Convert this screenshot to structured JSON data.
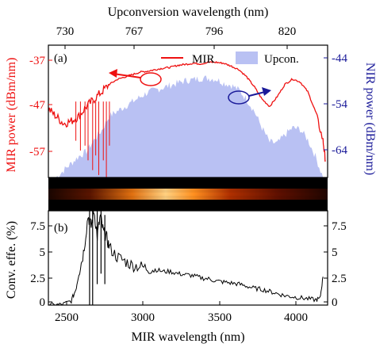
{
  "colors": {
    "mir": "#ee1111",
    "upcon_fill": "#b9c1f3",
    "nir": "#1a1a99",
    "black": "#000000"
  },
  "chart_data": [
    {
      "panel": "(a)",
      "type": "line",
      "title": "",
      "top_axis": {
        "label": "Upconversion wavelength (nm)",
        "ticks": [
          {
            "label": "730",
            "mir_nm": 2590
          },
          {
            "label": "767",
            "mir_nm": 2990
          },
          {
            "label": "796",
            "mir_nm": 3390
          },
          {
            "label": "820",
            "mir_nm": 3800
          }
        ]
      },
      "xlabel": "MIR wavelength (nm)",
      "xlim": [
        2400,
        4230
      ],
      "left_axis": {
        "label": "MIR power (dBm/nm)",
        "ylim": [
          -61.5,
          -34.5
        ],
        "ticks": [
          -37,
          -47,
          -57
        ],
        "color": "#ee1111"
      },
      "right_axis": {
        "label": "NIR power (dBm/nm)",
        "ylim": [
          -69,
          -41
        ],
        "ticks": [
          -44,
          -54,
          -64
        ],
        "color": "#1a1a99"
      },
      "legend": {
        "placement": "top-right",
        "entries": [
          {
            "label": "MIR",
            "style": "line",
            "color": "#ee1111"
          },
          {
            "label": "Upcon.",
            "style": "area",
            "color": "#b9c1f3"
          }
        ]
      },
      "series": [
        {
          "name": "MIR",
          "axis": "left",
          "x": [
            2400,
            2450,
            2500,
            2550,
            2600,
            2650,
            2700,
            2750,
            2800,
            2850,
            2900,
            2950,
            3000,
            3050,
            3100,
            3150,
            3200,
            3250,
            3300,
            3350,
            3400,
            3450,
            3500,
            3550,
            3600,
            3650,
            3700,
            3750,
            3800,
            3850,
            3900,
            3950,
            4000,
            4050,
            4100,
            4150,
            4200,
            4215
          ],
          "y": [
            -47.5,
            -49,
            -50.5,
            -50,
            -49,
            -47,
            -45.5,
            -44,
            -42.5,
            -41.5,
            -41,
            -40.5,
            -40,
            -39.8,
            -39.5,
            -39.2,
            -39,
            -38.6,
            -38.4,
            -38.2,
            -38.3,
            -38,
            -38,
            -38.2,
            -38.8,
            -39.5,
            -41,
            -43,
            -45.5,
            -47,
            -45,
            -42.5,
            -41.4,
            -42,
            -44,
            -48,
            -54,
            -58
          ]
        },
        {
          "name": "Upcon.",
          "axis": "right",
          "x": [
            2450,
            2500,
            2550,
            2600,
            2650,
            2700,
            2750,
            2800,
            2850,
            2900,
            2950,
            3000,
            3050,
            3100,
            3150,
            3200,
            3250,
            3300,
            3350,
            3400,
            3450,
            3500,
            3550,
            3600,
            3650,
            3700,
            3750,
            3800,
            3850,
            3900,
            3950,
            4000,
            4050,
            4100,
            4150,
            4200
          ],
          "y": [
            -69,
            -67.5,
            -66,
            -64.5,
            -63.5,
            -61,
            -59,
            -56,
            -55,
            -54,
            -53,
            -52,
            -51,
            -50.5,
            -50,
            -49.5,
            -49,
            -48.5,
            -48.3,
            -48,
            -48,
            -48.2,
            -49,
            -49.5,
            -50.5,
            -52.5,
            -55,
            -58.5,
            -61.5,
            -61.8,
            -60,
            -58.5,
            -58.8,
            -61,
            -64.5,
            -69
          ]
        }
      ],
      "annotations": [
        {
          "type": "arrow",
          "direction": "left",
          "meaning": "MIR curve uses left axis"
        },
        {
          "type": "arrow",
          "direction": "right",
          "meaning": "Upcon. curve uses right axis"
        }
      ],
      "grid": false
    },
    {
      "panel": "(b)",
      "type": "line",
      "xlabel": "MIR wavelength (nm)",
      "xlim": [
        2400,
        4230
      ],
      "xticks": [
        2500,
        3000,
        3500,
        4000
      ],
      "ylabel": "Conv. effe. (%)",
      "ylim": [
        0,
        9
      ],
      "yticks": [
        "0",
        "2.5",
        "5",
        "7.5"
      ],
      "right_yticks": [
        "0",
        "2.5",
        "5",
        "7.5"
      ],
      "series": [
        {
          "x": [
            2400,
            2450,
            2500,
            2550,
            2580,
            2600,
            2630,
            2660,
            2680,
            2700,
            2720,
            2740,
            2760,
            2780,
            2800,
            2850,
            2900,
            2950,
            3000,
            3050,
            3100,
            3150,
            3200,
            3250,
            3300,
            3350,
            3400,
            3450,
            3500,
            3550,
            3600,
            3650,
            3700,
            3750,
            3800,
            3850,
            3900,
            3950,
            4000,
            4050,
            4100,
            4150,
            4180,
            4200
          ],
          "y": [
            0,
            0,
            0.1,
            0.4,
            1.5,
            3,
            5,
            8.5,
            7.5,
            9,
            6.5,
            8.5,
            7,
            6.5,
            5.5,
            4.6,
            4.2,
            3.8,
            3.7,
            3.5,
            3.4,
            3.2,
            3.2,
            3.0,
            2.9,
            2.8,
            2.6,
            2.5,
            2.3,
            2.2,
            2.1,
            2.0,
            1.8,
            1.6,
            1.5,
            1.3,
            1.1,
            0.9,
            0.8,
            0.7,
            0.6,
            0.5,
            0.6,
            2.7
          ]
        }
      ],
      "grid": false
    }
  ],
  "labels": {
    "top_axis_title": "Upconversion wavelength (nm)",
    "top_ticks": [
      "730",
      "767",
      "796",
      "820"
    ],
    "left_axis_title": "MIR power (dBm/nm)",
    "right_axis_title": "NIR power (dBm/nm)",
    "left_ticks_a": [
      "-37",
      "-47",
      "-57"
    ],
    "right_ticks_a": [
      "-44",
      "-54",
      "-64"
    ],
    "panel_a": "(a)",
    "panel_b": "(b)",
    "legend_mir": "MIR",
    "legend_upcon": "Upcon.",
    "bottom_ticks": [
      "2500",
      "3000",
      "3500",
      "4000"
    ],
    "bottom_axis_title": "MIR wavelength (nm)",
    "conv_axis_title": "Conv. effe. (%)",
    "conv_ticks_left": [
      "0",
      "2.5",
      "5",
      "7.5"
    ],
    "conv_ticks_right": [
      "0",
      "2.5",
      "5",
      "7.5"
    ]
  }
}
